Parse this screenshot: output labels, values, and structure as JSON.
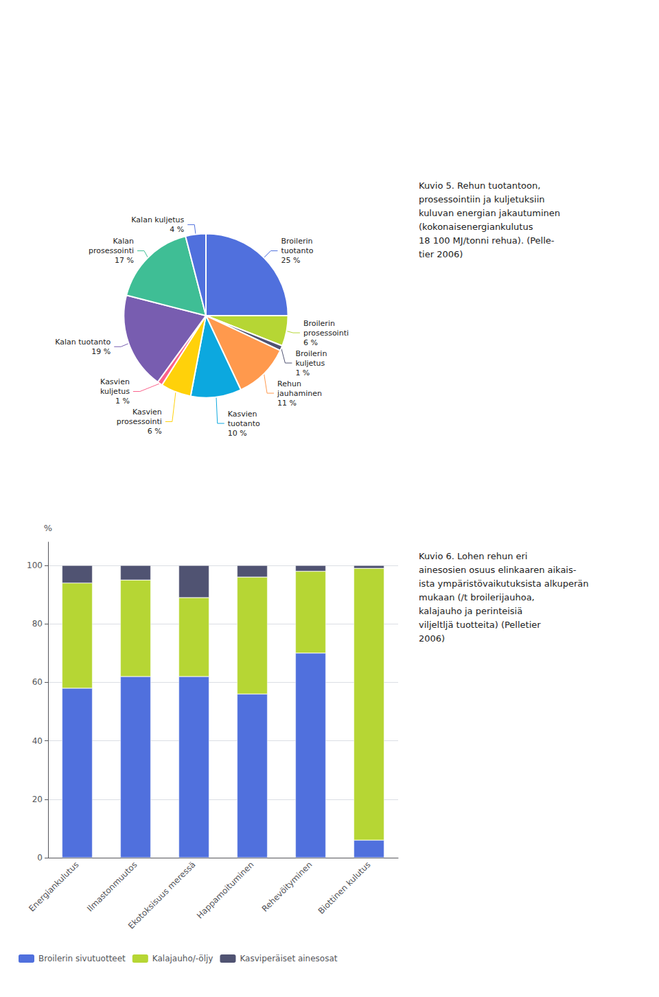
{
  "chart_data": [
    {
      "type": "pie",
      "categories": [
        "Broilerin\ntuotanto",
        "Broilerin\nprosessointi",
        "Broilerin\nkuljetus",
        "Rehun\njauhaminen",
        "Kasvien\ntuotanto",
        "Kasvien\nprosessointi",
        "Kasvien\nkuljetus",
        "Kalan tuotanto",
        "Kalan\nprosessointi",
        "Kalan kuljetus"
      ],
      "values": [
        25,
        6,
        1,
        11,
        10,
        6,
        1,
        19,
        17,
        4
      ],
      "value_labels": [
        "25 %",
        "6 %",
        "1 %",
        "11 %",
        "10 %",
        "6 %",
        "1 %",
        "19 %",
        "17 %",
        "4 %"
      ],
      "data_labels": true,
      "annotations": [
        "Kuvio 5. Rehun tuotantoon,\nprosessointiin ja kuljetuksiin\nkuluvan energian jakautuminen\n(kokonaisenergiankulutus\n18 100 MJ/tonni rehua). (Pelle-\ntier 2006)"
      ]
    },
    {
      "type": "bar",
      "categories": [
        "Energiankulutus",
        "Ilmastonmuutos",
        "Ekotoksisuus meressä",
        "Happamoituminen",
        "Rehevöityminen",
        "Biottinen kulutus"
      ],
      "series": [
        {
          "name": "Broilerin sivutuotteet",
          "values": [
            58,
            62,
            62,
            56,
            70,
            6
          ]
        },
        {
          "name": "Kalajauho/-öljy",
          "values": [
            36,
            33,
            27,
            40,
            28,
            93
          ]
        },
        {
          "name": "Kasviperäiset ainesosat",
          "values": [
            6,
            5,
            11,
            4,
            2,
            1
          ]
        }
      ],
      "stacked": true,
      "ylabel": "%",
      "ylim": [
        0,
        108
      ],
      "yticks": [
        0,
        20,
        40,
        60,
        80,
        100
      ],
      "grid": true,
      "legend": "bottom",
      "annotations": [
        "Kuvio 6. Lohen rehun eri\nainesosien osuus elinkaaren aikais-\nista ympäristövaikutuksista alkuperän\nmukaan (/t broilerijauhoa,\nkalajauho ja perinteisiä\nviljeltljä tuotteita) (Pelletier\n2006)"
      ]
    }
  ]
}
